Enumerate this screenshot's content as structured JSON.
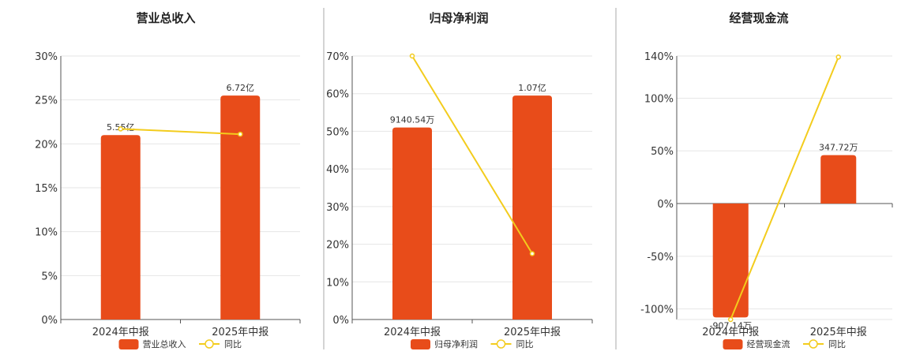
{
  "colors": {
    "bar": "#e84c1a",
    "line": "#f3cc1d",
    "grid": "#e6e6e6",
    "axis": "#555555",
    "divider": "#aaaaaa"
  },
  "legend_line_name": "同比",
  "chart_data": [
    {
      "type": "bar",
      "title": "营业总收入",
      "categories": [
        "2024年中报",
        "2025年中报"
      ],
      "ylim": [
        0,
        30
      ],
      "yticks": [
        0,
        5,
        10,
        15,
        20,
        25,
        30
      ],
      "tick_suffix": "%",
      "series": [
        {
          "name": "营业总收入",
          "type": "bar",
          "values": [
            21,
            25.5
          ],
          "labels": [
            "5.55亿",
            "6.72亿"
          ]
        },
        {
          "name": "同比",
          "type": "line",
          "values": [
            21.7,
            21.1
          ]
        }
      ],
      "legend_position": "bottom"
    },
    {
      "type": "bar",
      "title": "归母净利润",
      "categories": [
        "2024年中报",
        "2025年中报"
      ],
      "ylim": [
        0,
        70
      ],
      "yticks": [
        0,
        10,
        20,
        30,
        40,
        50,
        60,
        70
      ],
      "tick_suffix": "%",
      "series": [
        {
          "name": "归母净利润",
          "type": "bar",
          "values": [
            51,
            59.5
          ],
          "labels": [
            "9140.54万",
            "1.07亿"
          ]
        },
        {
          "name": "同比",
          "type": "line",
          "values": [
            70,
            17.5
          ]
        }
      ],
      "legend_position": "bottom"
    },
    {
      "type": "bar",
      "title": "经营现金流",
      "categories": [
        "2024年中报",
        "2025年中报"
      ],
      "ylim": [
        -110,
        140
      ],
      "yticks": [
        -100,
        -50,
        0,
        50,
        100,
        140
      ],
      "tick_suffix": "%",
      "series": [
        {
          "name": "经营现金流",
          "type": "bar",
          "values": [
            -108,
            46
          ],
          "labels": [
            "-907.14万",
            "347.72万"
          ]
        },
        {
          "name": "同比",
          "type": "line",
          "values": [
            -110,
            139
          ]
        }
      ],
      "legend_position": "bottom"
    }
  ]
}
